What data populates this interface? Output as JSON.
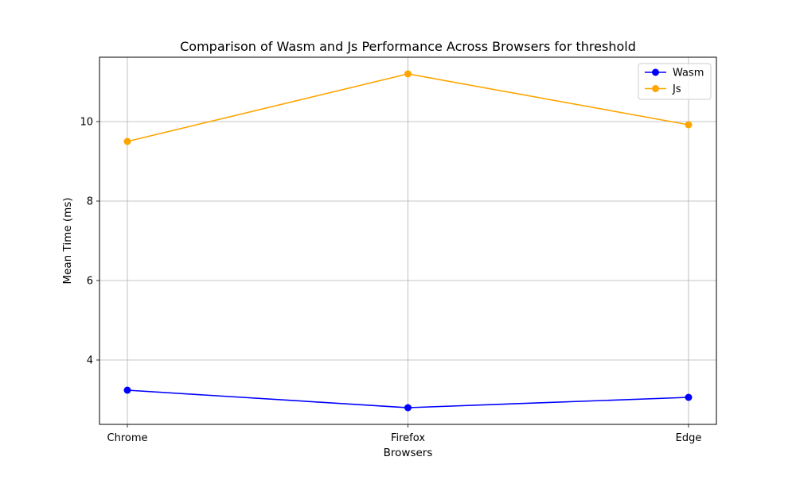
{
  "chart_data": {
    "type": "line",
    "title": "Comparison of Wasm and Js Performance Across Browsers for threshold",
    "xlabel": "Browsers",
    "ylabel": "Mean Time (ms)",
    "categories": [
      "Chrome",
      "Firefox",
      "Edge"
    ],
    "ylim": [
      2.38,
      11.62
    ],
    "yticks": [
      4,
      6,
      8,
      10
    ],
    "grid": true,
    "legend_position": "top-right",
    "series": [
      {
        "name": "Wasm",
        "color": "#0000ff",
        "marker": "circle",
        "values": [
          3.24,
          2.8,
          3.06
        ]
      },
      {
        "name": "Js",
        "color": "#ffa500",
        "marker": "circle",
        "values": [
          9.5,
          11.2,
          9.92
        ]
      }
    ]
  }
}
